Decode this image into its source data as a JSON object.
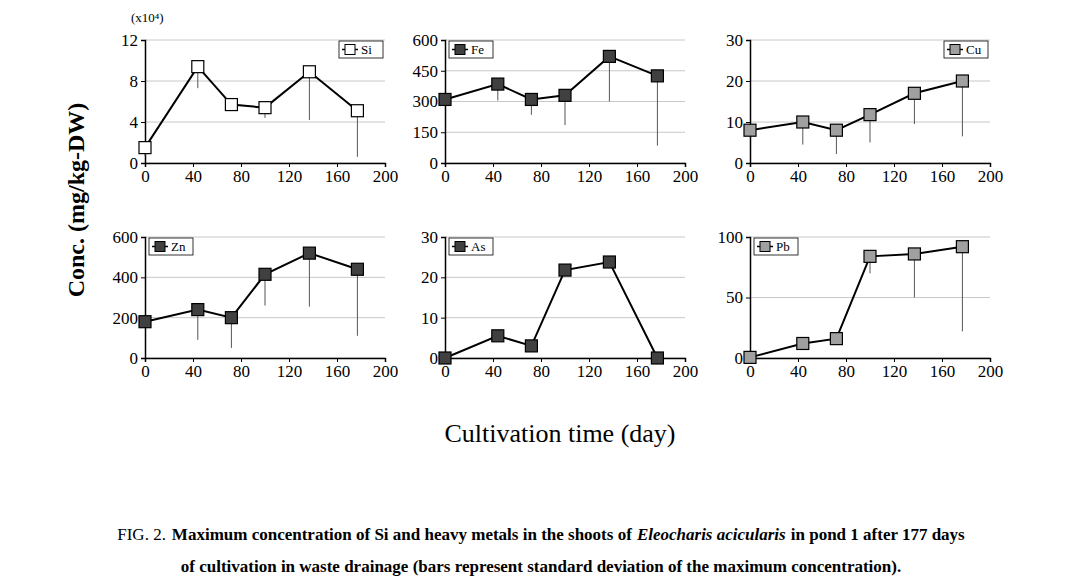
{
  "chart_data": [
    {
      "type": "line",
      "annotations": [
        "(x10⁴)"
      ],
      "x": [
        0,
        44,
        72,
        100,
        137,
        177
      ],
      "xlim": [
        0,
        200
      ],
      "xticks": [
        0,
        40,
        80,
        120,
        160,
        200
      ],
      "ylim": [
        0,
        12
      ],
      "yticks": [
        0,
        4,
        8,
        12
      ],
      "grid": true,
      "legend": "top-right",
      "series": [
        {
          "name": "Si",
          "color": "#ffffff",
          "marker": "square",
          "values": [
            1.5,
            9.4,
            5.7,
            5.4,
            8.9,
            5.1
          ],
          "errors": [
            0.8,
            2.1,
            0.3,
            1.0,
            4.7,
            4.5
          ]
        }
      ]
    },
    {
      "type": "line",
      "x": [
        0,
        44,
        72,
        100,
        137,
        177
      ],
      "xlim": [
        0,
        200
      ],
      "xticks": [
        0,
        40,
        80,
        120,
        160,
        200
      ],
      "ylim": [
        0,
        600
      ],
      "yticks": [
        0,
        150,
        300,
        450,
        600
      ],
      "grid": true,
      "legend": "top-left",
      "series": [
        {
          "name": "Fe",
          "color": "#404040",
          "marker": "square",
          "values": [
            310,
            385,
            310,
            330,
            520,
            425
          ],
          "errors": [
            0,
            80,
            75,
            145,
            220,
            340
          ]
        }
      ]
    },
    {
      "type": "line",
      "x": [
        0,
        44,
        72,
        100,
        137,
        177
      ],
      "xlim": [
        0,
        200
      ],
      "xticks": [
        0,
        40,
        80,
        120,
        160,
        200
      ],
      "ylim": [
        0,
        30
      ],
      "yticks": [
        0,
        10,
        20,
        30
      ],
      "grid": true,
      "legend": "top-right",
      "series": [
        {
          "name": "Cu",
          "color": "#a0a0a0",
          "marker": "square",
          "values": [
            8,
            10,
            8,
            11.8,
            17,
            20
          ],
          "errors": [
            0,
            5.5,
            5.8,
            6.8,
            7.5,
            13.5
          ]
        }
      ]
    },
    {
      "type": "line",
      "x": [
        0,
        44,
        72,
        100,
        137,
        177
      ],
      "xlim": [
        0,
        200
      ],
      "xticks": [
        0,
        40,
        80,
        120,
        160,
        200
      ],
      "ylim": [
        0,
        600
      ],
      "yticks": [
        0,
        200,
        400,
        600
      ],
      "grid": true,
      "legend": "top-left",
      "series": [
        {
          "name": "Zn",
          "color": "#404040",
          "marker": "square",
          "values": [
            180,
            240,
            200,
            415,
            520,
            440
          ],
          "errors": [
            0,
            150,
            150,
            155,
            265,
            330
          ]
        }
      ]
    },
    {
      "type": "line",
      "x": [
        0,
        44,
        72,
        100,
        137,
        177
      ],
      "xlim": [
        0,
        200
      ],
      "xticks": [
        0,
        40,
        80,
        120,
        160,
        200
      ],
      "ylim": [
        0,
        30
      ],
      "yticks": [
        0,
        10,
        20,
        30
      ],
      "grid": true,
      "legend": "top-left",
      "series": [
        {
          "name": "As",
          "color": "#404040",
          "marker": "square",
          "values": [
            0,
            5.5,
            3,
            21.8,
            23.8,
            0
          ]
        }
      ]
    },
    {
      "type": "line",
      "x": [
        0,
        44,
        72,
        100,
        137,
        177
      ],
      "xlim": [
        0,
        200
      ],
      "xticks": [
        0,
        40,
        80,
        120,
        160,
        200
      ],
      "ylim": [
        0,
        100
      ],
      "yticks": [
        0,
        50,
        100
      ],
      "grid": true,
      "legend": "top-left",
      "series": [
        {
          "name": "Pb",
          "color": "#a0a0a0",
          "marker": "square",
          "values": [
            0.5,
            12,
            16,
            84,
            86,
            92
          ],
          "errors": [
            0,
            0,
            5,
            14,
            36,
            70
          ]
        }
      ]
    }
  ],
  "figure": {
    "y_label": "Conc. (mg/kg-DW)",
    "x_label": "Cultivation time (day)",
    "caption": {
      "label": "FIG. 2.",
      "line1_start": "Maximum concentration of Si and heavy metals in the shoots of",
      "species": "Eleocharis acicularis",
      "line1_end": "in pond 1 after 177 days",
      "line2": "of cultivation in waste drainage (bars represent standard deviation of the maximum concentration)."
    }
  }
}
